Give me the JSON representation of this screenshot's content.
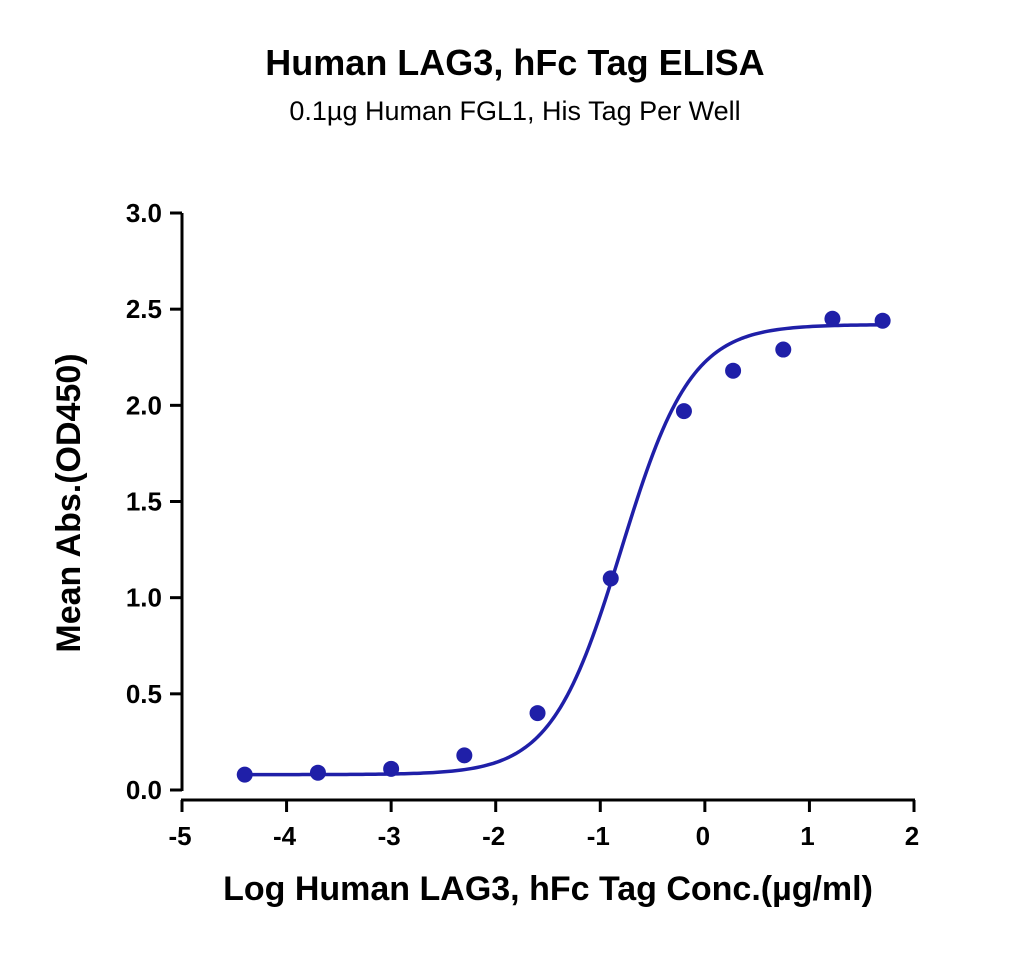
{
  "chart_data": {
    "type": "scatter",
    "title": "Human LAG3, hFc Tag ELISA",
    "subtitle": "0.1µg Human FGL1, His Tag Per Well",
    "xlabel": "Log Human LAG3, hFc Tag Conc.(µg/ml)",
    "ylabel": "Mean Abs.(OD450)",
    "xlim": [
      -5,
      2
    ],
    "ylim": [
      0,
      3.0
    ],
    "x_ticks": [
      "-5",
      "-4",
      "-3",
      "-2",
      "-1",
      "0",
      "1",
      "2"
    ],
    "y_ticks": [
      "0.0",
      "0.5",
      "1.0",
      "1.5",
      "2.0",
      "2.5",
      "3.0"
    ],
    "grid": false,
    "color": "#1f1fa8",
    "series": [
      {
        "points": [
          {
            "x": -4.4,
            "y": 0.08
          },
          {
            "x": -3.7,
            "y": 0.09
          },
          {
            "x": -3.0,
            "y": 0.11
          },
          {
            "x": -2.3,
            "y": 0.18
          },
          {
            "x": -1.6,
            "y": 0.4
          },
          {
            "x": -0.9,
            "y": 1.1
          },
          {
            "x": -0.2,
            "y": 1.97
          },
          {
            "x": 0.27,
            "y": 2.18
          },
          {
            "x": 0.75,
            "y": 2.29
          },
          {
            "x": 1.22,
            "y": 2.45
          },
          {
            "x": 1.7,
            "y": 2.44
          }
        ],
        "fit": {
          "model": "4PL",
          "bottom": 0.08,
          "top": 2.42,
          "logEC50": -0.8,
          "hill": 1.3
        }
      }
    ]
  }
}
